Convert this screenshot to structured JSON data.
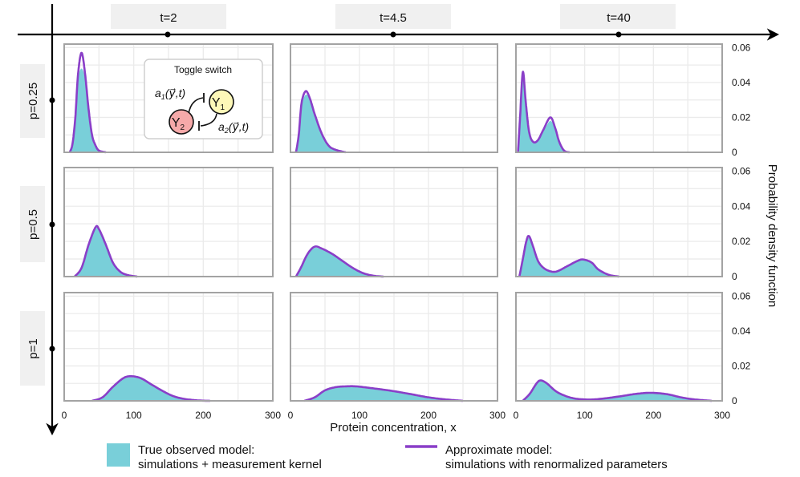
{
  "colors": {
    "true_fill": "#79cfd9",
    "approx_line": "#8a3fc8",
    "grid": "#ebebeb",
    "frame": "#a3a3a3",
    "label_box": "#f0f0f0",
    "y1_node": "#fdf8b8",
    "y2_node": "#f6a9a9"
  },
  "chart_data": {
    "type": "area",
    "xlabel": "Protein concentration, x",
    "ylabel": "Probability density function",
    "xlim": [
      0,
      300
    ],
    "ylim": [
      0,
      0.062
    ],
    "xticks": [
      "0",
      "100",
      "200",
      "300"
    ],
    "yticks": [
      "0",
      "0.02",
      "0.04",
      "0.06"
    ],
    "grid": true,
    "columns": [
      "t=2",
      "t=4.5",
      "t=40"
    ],
    "rows": [
      "p=0.25",
      "p=0.5",
      "p=1"
    ],
    "legend": {
      "placement": "bottom",
      "true_label": [
        "True observed model:",
        "simulations + measurement kernel"
      ],
      "approx_label": [
        "Approximate model:",
        "simulations with renormalized parameters"
      ]
    },
    "inset": {
      "title": "Toggle switch",
      "node1": "Y",
      "node1_sub": "1",
      "node2": "Y",
      "node2_sub": "2",
      "rate1": "a",
      "rate1_sub": "1",
      "rate1_args": "(y⃗,t)",
      "rate2": "a",
      "rate2_sub": "2",
      "rate2_args": "(y⃗,t)"
    },
    "panels": [
      {
        "row": "p=0.25",
        "col": "t=2",
        "x": [
          8,
          12,
          16,
          20,
          25,
          30,
          35,
          40,
          45,
          50,
          60
        ],
        "approx": [
          0,
          0.005,
          0.02,
          0.045,
          0.057,
          0.045,
          0.025,
          0.01,
          0.004,
          0.001,
          0
        ],
        "true": [
          0,
          0.006,
          0.022,
          0.042,
          0.048,
          0.042,
          0.026,
          0.011,
          0.004,
          0.001,
          0
        ]
      },
      {
        "row": "p=0.25",
        "col": "t=4.5",
        "x": [
          8,
          12,
          16,
          22,
          28,
          35,
          45,
          55,
          65,
          80
        ],
        "approx": [
          0,
          0.01,
          0.028,
          0.035,
          0.031,
          0.022,
          0.011,
          0.004,
          0.0015,
          0
        ],
        "true": [
          0,
          0.009,
          0.026,
          0.033,
          0.03,
          0.021,
          0.011,
          0.004,
          0.0015,
          0
        ]
      },
      {
        "row": "p=0.25",
        "col": "t=40",
        "x": [
          3,
          6,
          10,
          14,
          19,
          25,
          32,
          40,
          50,
          57,
          63,
          70,
          78
        ],
        "approx": [
          0,
          0.02,
          0.046,
          0.03,
          0.012,
          0.006,
          0.007,
          0.013,
          0.02,
          0.014,
          0.006,
          0.001,
          0
        ],
        "true": [
          0,
          0.019,
          0.043,
          0.029,
          0.012,
          0.006,
          0.007,
          0.012,
          0.018,
          0.013,
          0.006,
          0.001,
          0
        ]
      },
      {
        "row": "p=0.5",
        "col": "t=2",
        "x": [
          15,
          25,
          35,
          45,
          50,
          60,
          70,
          80,
          90,
          105
        ],
        "approx": [
          0,
          0.005,
          0.018,
          0.028,
          0.027,
          0.018,
          0.008,
          0.003,
          0.001,
          0
        ],
        "true": [
          0,
          0.005,
          0.017,
          0.027,
          0.026,
          0.017,
          0.008,
          0.003,
          0.001,
          0
        ]
      },
      {
        "row": "p=0.5",
        "col": "t=4.5",
        "x": [
          8,
          15,
          25,
          35,
          45,
          60,
          75,
          90,
          105,
          120,
          135
        ],
        "approx": [
          0,
          0.005,
          0.013,
          0.017,
          0.016,
          0.013,
          0.009,
          0.005,
          0.002,
          0.0005,
          0
        ],
        "true": [
          0,
          0.005,
          0.0125,
          0.0163,
          0.0154,
          0.0125,
          0.0086,
          0.0048,
          0.0019,
          0.0005,
          0
        ]
      },
      {
        "row": "p=0.5",
        "col": "t=40",
        "x": [
          5,
          10,
          15,
          19,
          25,
          32,
          40,
          50,
          60,
          75,
          90,
          98,
          110,
          120,
          135,
          150
        ],
        "approx": [
          0,
          0.01,
          0.02,
          0.023,
          0.017,
          0.009,
          0.005,
          0.003,
          0.003,
          0.006,
          0.009,
          0.0097,
          0.008,
          0.004,
          0.001,
          0
        ],
        "true": [
          0,
          0.0096,
          0.019,
          0.022,
          0.0163,
          0.0086,
          0.0048,
          0.0029,
          0.0029,
          0.0058,
          0.0086,
          0.0093,
          0.0077,
          0.0038,
          0.001,
          0
        ]
      },
      {
        "row": "p=1",
        "col": "t=2",
        "x": [
          40,
          55,
          70,
          85,
          96,
          110,
          125,
          140,
          155,
          170,
          190,
          210
        ],
        "approx": [
          0,
          0.002,
          0.008,
          0.013,
          0.0141,
          0.013,
          0.0095,
          0.006,
          0.003,
          0.0013,
          0.0003,
          0
        ],
        "true": [
          0,
          0.0019,
          0.0077,
          0.0125,
          0.0135,
          0.0125,
          0.0091,
          0.0058,
          0.0029,
          0.0012,
          0.0003,
          0
        ]
      },
      {
        "row": "p=1",
        "col": "t=4.5",
        "x": [
          20,
          35,
          50,
          65,
          80,
          95,
          115,
          135,
          155,
          175,
          200,
          225,
          250
        ],
        "approx": [
          0,
          0.002,
          0.006,
          0.0078,
          0.0083,
          0.0083,
          0.0074,
          0.0064,
          0.0052,
          0.0038,
          0.002,
          0.0008,
          0
        ],
        "true": [
          0,
          0.0019,
          0.0058,
          0.0075,
          0.008,
          0.008,
          0.0071,
          0.0061,
          0.005,
          0.0036,
          0.0019,
          0.0008,
          0
        ]
      },
      {
        "row": "p=1",
        "col": "t=40",
        "x": [
          10,
          20,
          30,
          36,
          45,
          60,
          80,
          100,
          120,
          150,
          175,
          197,
          220,
          240,
          260,
          285
        ],
        "approx": [
          0,
          0.004,
          0.01,
          0.0117,
          0.01,
          0.005,
          0.0018,
          0.0008,
          0.001,
          0.0025,
          0.004,
          0.0046,
          0.0038,
          0.002,
          0.0008,
          0
        ],
        "true": [
          0,
          0.0038,
          0.0096,
          0.0112,
          0.0096,
          0.0048,
          0.0017,
          0.0008,
          0.001,
          0.0024,
          0.0038,
          0.0044,
          0.0036,
          0.0019,
          0.0008,
          0
        ]
      }
    ]
  }
}
